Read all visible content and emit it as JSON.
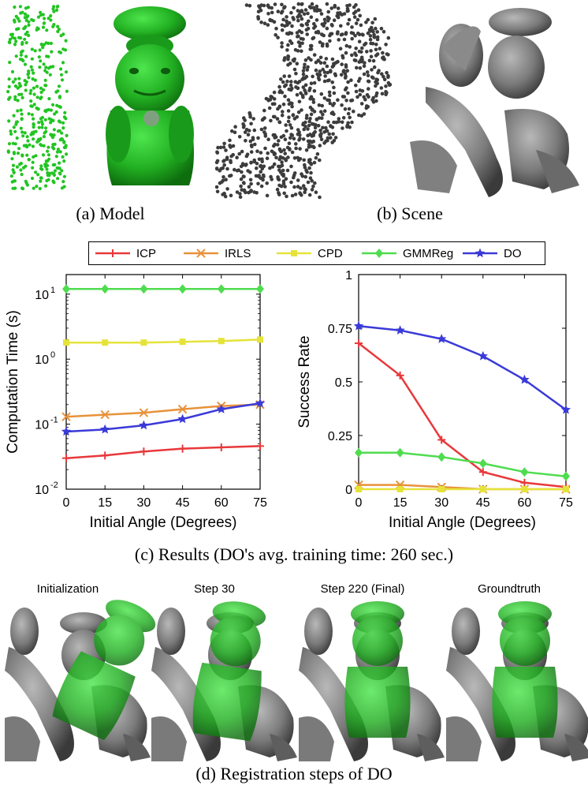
{
  "captions": {
    "a": "(a) Model",
    "b": "(b) Scene",
    "c": "(c) Results (DO's avg. training time: 260 sec.)",
    "d": "(d) Registration steps of DO"
  },
  "steps": [
    "Initialization",
    "Step 30",
    "Step 220 (Final)",
    "Groundtruth"
  ],
  "legend": [
    {
      "name": "ICP",
      "color": "#e8383b",
      "marker": "plus"
    },
    {
      "name": "IRLS",
      "color": "#e8923a",
      "marker": "x"
    },
    {
      "name": "CPD",
      "color": "#e5e33a",
      "marker": "square"
    },
    {
      "name": "GMMReg",
      "color": "#4fdc4f",
      "marker": "diamond"
    },
    {
      "name": "DO",
      "color": "#3a3ad8",
      "marker": "star"
    }
  ],
  "chart_data": [
    {
      "type": "line",
      "x": [
        0,
        15,
        30,
        45,
        60,
        75
      ],
      "xlabel": "Initial Angle (Degrees)",
      "ylabel": "Computation Time (s)",
      "yscale": "log",
      "ylim": [
        0.01,
        20
      ],
      "yticks": [
        "10",
        "10",
        "10",
        "10"
      ],
      "ytick_exponents": [
        "1",
        "0",
        "-1",
        "-2"
      ],
      "ytick_values": [
        10,
        1,
        0.1,
        0.01
      ],
      "xticks": [
        "0",
        "15",
        "30",
        "45",
        "60",
        "75"
      ],
      "series": [
        {
          "name": "ICP",
          "values": [
            0.03,
            0.033,
            0.038,
            0.042,
            0.044,
            0.046
          ]
        },
        {
          "name": "IRLS",
          "values": [
            0.13,
            0.14,
            0.15,
            0.17,
            0.19,
            0.2
          ]
        },
        {
          "name": "CPD",
          "values": [
            1.8,
            1.8,
            1.8,
            1.85,
            1.9,
            2.0
          ]
        },
        {
          "name": "GMMReg",
          "values": [
            12,
            12,
            12,
            12,
            12,
            12
          ]
        },
        {
          "name": "DO",
          "values": [
            0.077,
            0.083,
            0.096,
            0.12,
            0.17,
            0.21
          ]
        }
      ]
    },
    {
      "type": "line",
      "x": [
        0,
        15,
        30,
        45,
        60,
        75
      ],
      "xlabel": "Initial Angle (Degrees)",
      "ylabel": "Success Rate",
      "ylim": [
        0,
        1
      ],
      "yticks": [
        "1",
        "0.75",
        "0.5",
        "0.25",
        "0"
      ],
      "ytick_values": [
        1,
        0.75,
        0.5,
        0.25,
        0
      ],
      "xticks": [
        "0",
        "15",
        "30",
        "45",
        "60",
        "75"
      ],
      "series": [
        {
          "name": "ICP",
          "values": [
            0.68,
            0.53,
            0.23,
            0.08,
            0.03,
            0.01
          ]
        },
        {
          "name": "IRLS",
          "values": [
            0.02,
            0.02,
            0.01,
            0.0,
            0.0,
            0.0
          ]
        },
        {
          "name": "CPD",
          "values": [
            0.0,
            0.0,
            0.0,
            0.0,
            0.0,
            0.0
          ]
        },
        {
          "name": "GMMReg",
          "values": [
            0.17,
            0.17,
            0.15,
            0.12,
            0.08,
            0.06
          ]
        },
        {
          "name": "DO",
          "values": [
            0.76,
            0.74,
            0.7,
            0.62,
            0.51,
            0.37
          ]
        }
      ]
    }
  ]
}
